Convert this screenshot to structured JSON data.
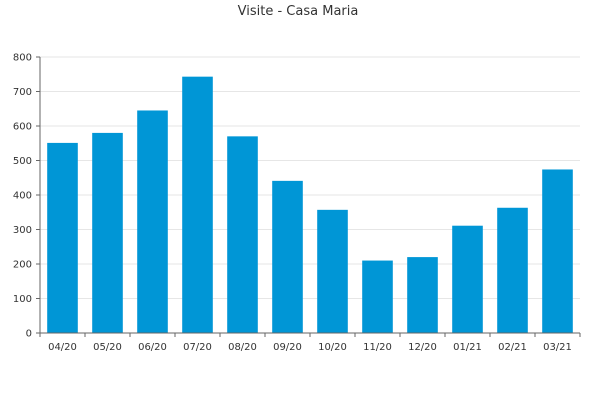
{
  "chart_data": {
    "type": "bar",
    "title": "Visite - Casa Maria",
    "xlabel": "",
    "ylabel": "",
    "categories": [
      "04/20",
      "05/20",
      "06/20",
      "07/20",
      "08/20",
      "09/20",
      "10/20",
      "11/20",
      "12/20",
      "01/21",
      "02/21",
      "03/21"
    ],
    "values": [
      551,
      580,
      645,
      743,
      570,
      441,
      357,
      210,
      220,
      311,
      363,
      474
    ],
    "ylim": [
      0,
      800
    ],
    "yticks": [
      0,
      100,
      200,
      300,
      400,
      500,
      600,
      700,
      800
    ],
    "grid": true,
    "legend": "none",
    "colors": {
      "bar": "#0096d6",
      "grid": "#e6e6e6",
      "axis": "#666666"
    }
  }
}
